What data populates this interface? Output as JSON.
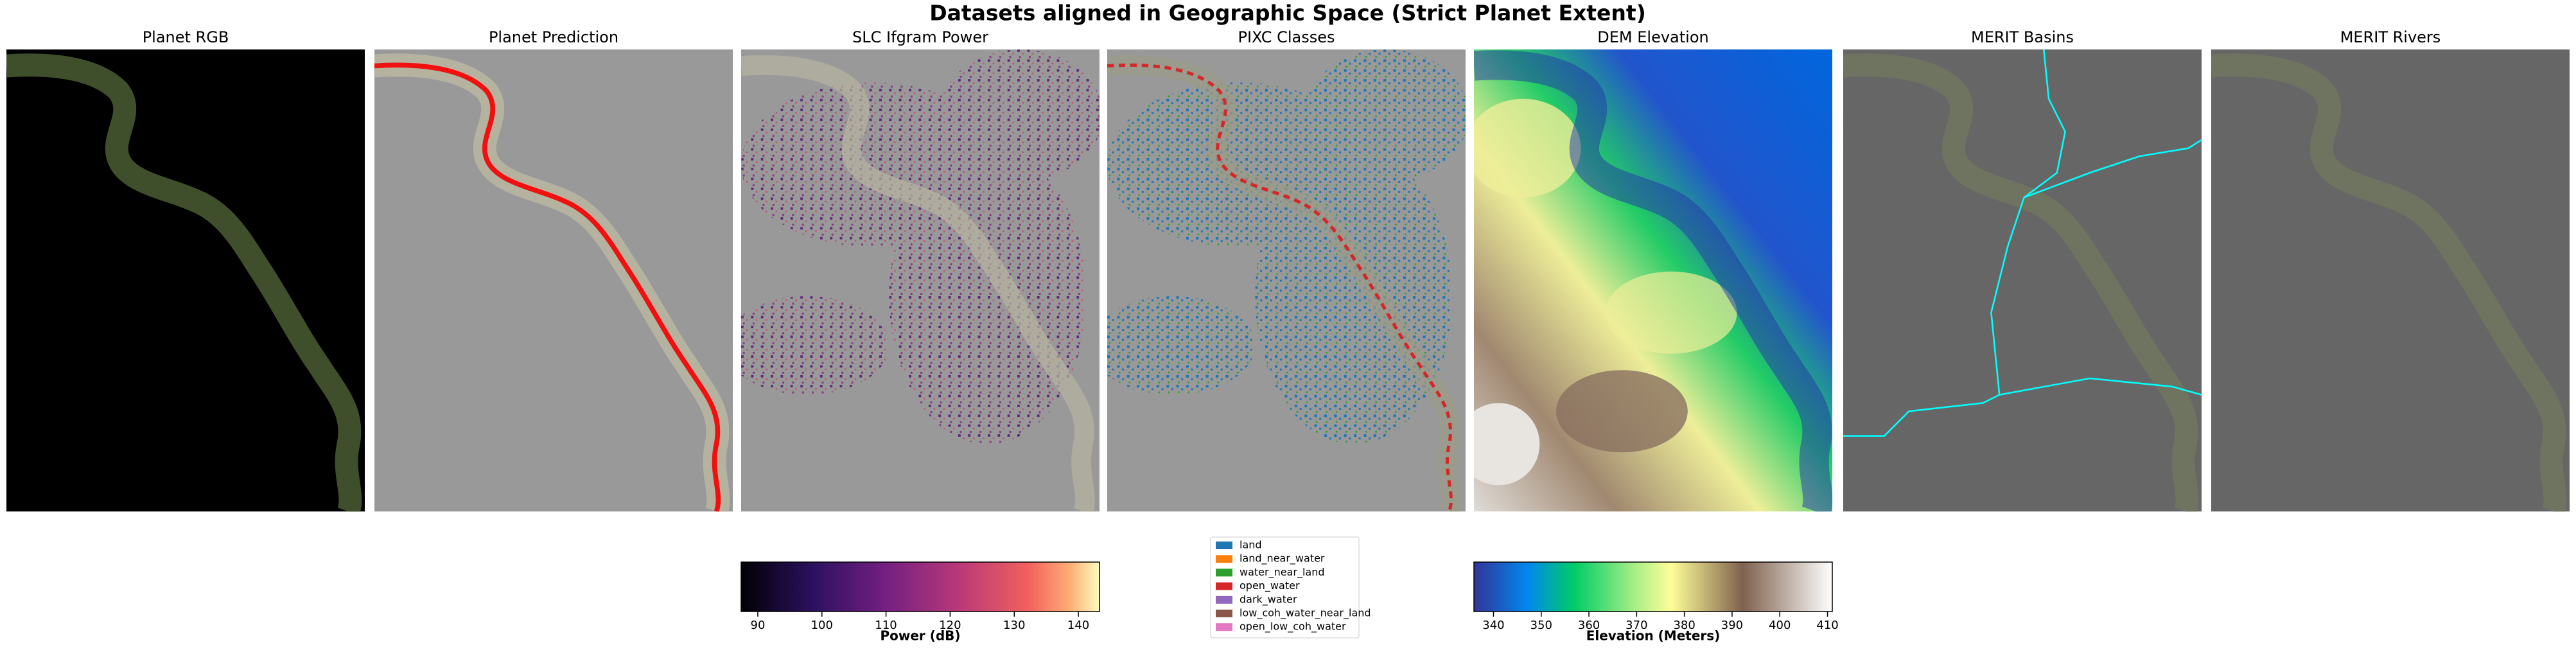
{
  "title": "Datasets aligned in Geographic Space (Strict Planet Extent)",
  "panels": [
    "Planet RGB",
    "Planet Prediction",
    "SLC Ifgram Power",
    "PIXC Classes",
    "DEM Elevation",
    "MERIT Basins",
    "MERIT Rivers"
  ],
  "colorbars": [
    {
      "label": "Power (dB)",
      "lim": [
        87.4,
        143.3
      ],
      "ticks": [
        90,
        100,
        110,
        120,
        130,
        140
      ]
    },
    {
      "label": "Elevation (Meters)",
      "lim": [
        335.9,
        411
      ],
      "ticks": [
        340,
        350,
        360,
        370,
        380,
        390,
        400,
        410
      ]
    }
  ],
  "legend": [
    {
      "name": "land",
      "color": "#1f77b4"
    },
    {
      "name": "land_near_water",
      "color": "#ff7f0e"
    },
    {
      "name": "water_near_land",
      "color": "#2ca02c"
    },
    {
      "name": "open_water",
      "color": "#d62728"
    },
    {
      "name": "dark_water",
      "color": "#9467bd"
    },
    {
      "name": "low_coh_water_near_land",
      "color": "#8c564b"
    },
    {
      "name": "open_low_coh_water",
      "color": "#e377c2"
    }
  ]
}
